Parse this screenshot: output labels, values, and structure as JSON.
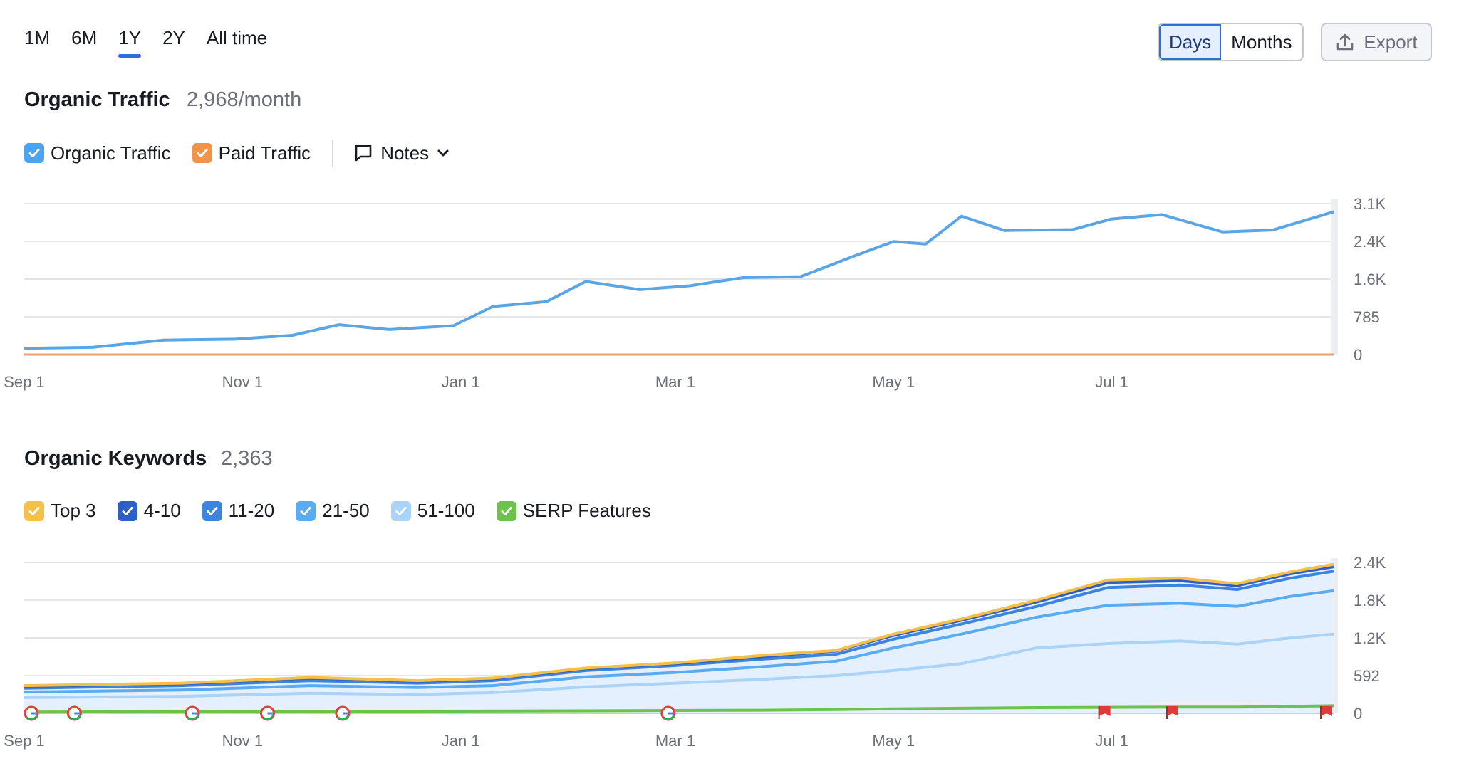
{
  "range_tabs": [
    {
      "label": "1M",
      "active": false
    },
    {
      "label": "6M",
      "active": false
    },
    {
      "label": "1Y",
      "active": true
    },
    {
      "label": "2Y",
      "active": false
    },
    {
      "label": "All time",
      "active": false
    }
  ],
  "granularity": {
    "days_label": "Days",
    "months_label": "Months",
    "selected": "Days"
  },
  "export_label": "Export",
  "traffic": {
    "title": "Organic Traffic",
    "value": "2,968/month",
    "legend": [
      {
        "label": "Organic Traffic",
        "color": "#4ea3ee",
        "checked": true
      },
      {
        "label": "Paid Traffic",
        "color": "#f2924b",
        "checked": true
      }
    ],
    "notes_label": "Notes"
  },
  "keywords": {
    "title": "Organic Keywords",
    "value": "2,363",
    "legend": [
      {
        "label": "Top 3",
        "color": "#f5c04a",
        "checked": true
      },
      {
        "label": "4-10",
        "color": "#2d5fc4",
        "checked": true
      },
      {
        "label": "11-20",
        "color": "#3d83e0",
        "checked": true
      },
      {
        "label": "21-50",
        "color": "#5aabef",
        "checked": true
      },
      {
        "label": "51-100",
        "color": "#a9d3f8",
        "checked": true
      },
      {
        "label": "SERP Features",
        "color": "#6cc24a",
        "checked": true
      }
    ]
  },
  "chart_data": [
    {
      "type": "line",
      "title": "Organic Traffic",
      "xlabel": "",
      "ylabel": "",
      "x_ticks": [
        "Nov 1",
        "Jan 1",
        "Mar 1",
        "May 1",
        "Jul 1",
        "Sep 1"
      ],
      "y_ticks": [
        "0",
        "785",
        "1.6K",
        "2.4K",
        "3.1K"
      ],
      "ylim": [
        0,
        3140
      ],
      "x_range": [
        "2023-09-01",
        "2024-09-01"
      ],
      "grid": true,
      "legend_position": "top-left",
      "series": [
        {
          "name": "Organic Traffic",
          "color": "#5aa5e6",
          "x": [
            "2023-09-01",
            "2023-09-20",
            "2023-10-10",
            "2023-10-30",
            "2023-11-15",
            "2023-11-28",
            "2023-12-12",
            "2023-12-30",
            "2024-01-10",
            "2024-01-25",
            "2024-02-05",
            "2024-02-20",
            "2024-03-05",
            "2024-03-20",
            "2024-04-05",
            "2024-04-20",
            "2024-05-01",
            "2024-05-10",
            "2024-05-20",
            "2024-06-01",
            "2024-06-20",
            "2024-07-01",
            "2024-07-15",
            "2024-08-01",
            "2024-08-15",
            "2024-09-01"
          ],
          "y": [
            130,
            150,
            300,
            320,
            400,
            620,
            520,
            600,
            1000,
            1100,
            1520,
            1350,
            1430,
            1600,
            1620,
            2050,
            2350,
            2300,
            2880,
            2580,
            2600,
            2820,
            2910,
            2550,
            2590,
            2968
          ]
        },
        {
          "name": "Paid Traffic",
          "color": "#f2a36b",
          "x": [
            "2023-09-01",
            "2024-09-01"
          ],
          "y": [
            0,
            0
          ]
        }
      ]
    },
    {
      "type": "area",
      "title": "Organic Keywords",
      "xlabel": "",
      "ylabel": "",
      "x_ticks": [
        "Nov 1",
        "Jan 1",
        "Mar 1",
        "May 1",
        "Jul 1",
        "Sep 1"
      ],
      "y_ticks": [
        "0",
        "592",
        "1.2K",
        "1.8K",
        "2.4K"
      ],
      "ylim": [
        0,
        2400
      ],
      "x_range": [
        "2023-09-01",
        "2024-09-01"
      ],
      "grid": true,
      "legend_position": "top-left",
      "x": [
        "2023-09-01",
        "2023-10-15",
        "2023-11-20",
        "2023-12-20",
        "2024-01-10",
        "2024-02-05",
        "2024-03-01",
        "2024-03-25",
        "2024-04-15",
        "2024-05-01",
        "2024-05-20",
        "2024-06-10",
        "2024-06-30",
        "2024-07-20",
        "2024-08-05",
        "2024-08-20",
        "2024-09-01"
      ],
      "series": [
        {
          "name": "Top 3",
          "color": "#f5c04a",
          "values": [
            440,
            480,
            570,
            520,
            560,
            720,
            800,
            920,
            1000,
            1260,
            1500,
            1800,
            2120,
            2150,
            2060,
            2250,
            2370
          ]
        },
        {
          "name": "4-10",
          "color": "#2d5fc4",
          "values": [
            430,
            470,
            560,
            510,
            550,
            710,
            790,
            900,
            990,
            1240,
            1480,
            1770,
            2080,
            2110,
            2030,
            2220,
            2330
          ]
        },
        {
          "name": "11-20",
          "color": "#3d83e0",
          "values": [
            400,
            440,
            520,
            480,
            520,
            680,
            760,
            860,
            940,
            1180,
            1420,
            1700,
            2000,
            2040,
            1970,
            2150,
            2260
          ]
        },
        {
          "name": "21-50",
          "color": "#5aabef",
          "values": [
            340,
            370,
            440,
            410,
            440,
            580,
            650,
            740,
            830,
            1040,
            1260,
            1530,
            1720,
            1750,
            1700,
            1860,
            1950
          ]
        },
        {
          "name": "51-100",
          "color": "#a9d3f8",
          "values": [
            250,
            270,
            320,
            300,
            330,
            420,
            480,
            540,
            600,
            680,
            790,
            1040,
            1110,
            1150,
            1100,
            1200,
            1260
          ]
        },
        {
          "name": "SERP Features",
          "color": "#6cc24a",
          "values": [
            20,
            25,
            30,
            32,
            35,
            40,
            45,
            50,
            60,
            70,
            80,
            90,
            95,
            100,
            100,
            110,
            120
          ]
        }
      ],
      "markers": {
        "google_updates": [
          "2023-09-03",
          "2023-09-15",
          "2023-10-18",
          "2023-11-08",
          "2023-11-29",
          "2024-02-28"
        ],
        "flags": [
          "2024-06-29",
          "2024-07-18",
          "2024-08-30"
        ]
      }
    }
  ]
}
